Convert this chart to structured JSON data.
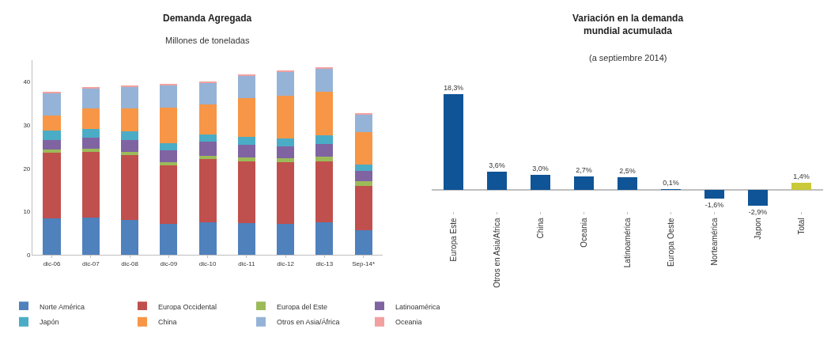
{
  "chart_data": [
    {
      "type": "bar",
      "title": "Demanda Agregada",
      "subtitle": "Millones de toneladas",
      "categories": [
        "dic-06",
        "dic-07",
        "dic-08",
        "dic-09",
        "dic-10",
        "dic-11",
        "dic-12",
        "dic-13",
        "Sep-14*"
      ],
      "stacked": true,
      "ylim": [
        0,
        45
      ],
      "yticks": [
        0,
        10,
        20,
        30,
        40
      ],
      "legend": "bottom",
      "series": [
        {
          "name": "Norte América",
          "color": "#4f81bd",
          "values": [
            8.5,
            8.7,
            8.0,
            7.2,
            7.5,
            7.3,
            7.2,
            7.5,
            5.6
          ]
        },
        {
          "name": "Europa Occidental",
          "color": "#c0504d",
          "values": [
            15.1,
            15.2,
            15.0,
            13.5,
            14.7,
            14.4,
            14.2,
            14.2,
            10.4
          ]
        },
        {
          "name": "Europa del Este",
          "color": "#9bbb59",
          "values": [
            0.8,
            0.7,
            0.9,
            0.8,
            0.7,
            0.8,
            0.9,
            1.0,
            1.0
          ]
        },
        {
          "name": "Latinoamérica",
          "color": "#8064a2",
          "values": [
            2.2,
            2.5,
            2.7,
            2.6,
            3.2,
            2.9,
            2.8,
            3.0,
            2.4
          ]
        },
        {
          "name": "Japón",
          "color": "#4bacc6",
          "values": [
            2.2,
            2.1,
            1.9,
            1.8,
            1.8,
            1.9,
            1.9,
            2.0,
            1.5
          ]
        },
        {
          "name": "China",
          "color": "#f79646",
          "values": [
            3.5,
            4.6,
            5.3,
            8.2,
            6.9,
            8.9,
            9.9,
            10.1,
            7.5
          ]
        },
        {
          "name": "Otros en Asia/África",
          "color": "#95b3d7",
          "values": [
            5.1,
            4.7,
            5.0,
            5.2,
            4.9,
            5.2,
            5.5,
            5.3,
            4.0
          ]
        },
        {
          "name": "Oceania",
          "color": "#f2a0a0",
          "values": [
            0.1,
            0.3,
            0.3,
            0.2,
            0.3,
            0.3,
            0.2,
            0.3,
            0.3
          ]
        }
      ]
    },
    {
      "type": "bar",
      "title": "Variación en la demanda mundial acumulada",
      "subtitle": "(a septiembre 2014)",
      "categories": [
        "Europa Este",
        "Otros en Asia/Africa",
        "China",
        "Oceania",
        "Latinoamérica",
        "Europa Oeste",
        "Norteamérica",
        "Japon",
        "Total"
      ],
      "values": [
        18.3,
        3.6,
        3.0,
        2.7,
        2.5,
        0.1,
        -1.6,
        -2.9,
        1.4
      ],
      "colors": [
        "#0f5496",
        "#0f5496",
        "#0f5496",
        "#0f5496",
        "#0f5496",
        "#0f5496",
        "#0f5496",
        "#0f5496",
        "#c9c93a"
      ],
      "value_labels": [
        "18,3%",
        "3,6%",
        "3,0%",
        "2,7%",
        "2,5%",
        "0,1%",
        "-1,6%",
        "-2,9%",
        "1,4%"
      ],
      "tick_labels": "x"
    }
  ]
}
